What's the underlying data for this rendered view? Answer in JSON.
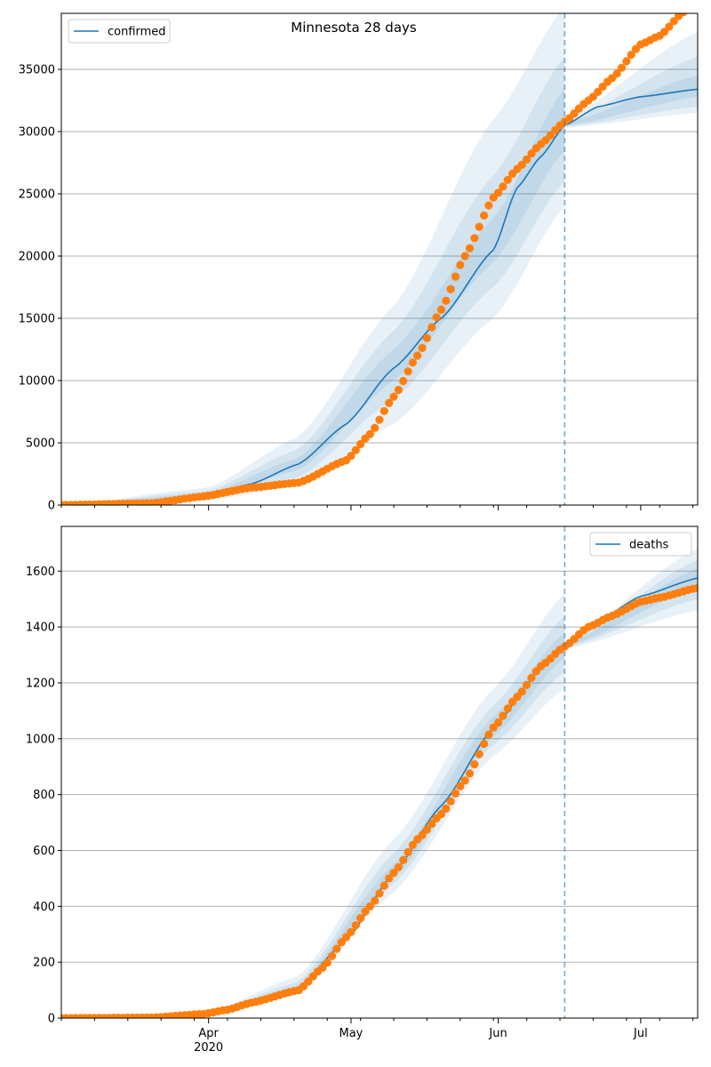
{
  "chart_data": [
    {
      "type": "line",
      "title": "Minnesota 28 days",
      "legend": {
        "label": "confirmed",
        "placement": "top-left"
      },
      "x_start": "2020-03-01",
      "x_end": "2020-07-13",
      "split_date": "2020-06-15",
      "ylim": [
        0,
        39500
      ],
      "yticks": [
        0,
        5000,
        10000,
        15000,
        20000,
        25000,
        30000,
        35000
      ],
      "xtick_labels": [
        {
          "date": "2020-04-01",
          "label": "Apr",
          "year": "2020"
        },
        {
          "date": "2020-05-01",
          "label": "May"
        },
        {
          "date": "2020-06-01",
          "label": "Jun"
        },
        {
          "date": "2020-07-01",
          "label": "Jul"
        }
      ],
      "grid": "horizontal",
      "colors": {
        "model": "#1f77b4",
        "observed": "#ff7f0e",
        "band": "#1f77b4"
      },
      "model_median": [
        [
          "2020-03-01",
          0
        ],
        [
          "2020-03-15",
          100
        ],
        [
          "2020-03-25",
          450
        ],
        [
          "2020-04-01",
          800
        ],
        [
          "2020-04-10",
          1700
        ],
        [
          "2020-04-20",
          3300
        ],
        [
          "2020-04-30",
          6500
        ],
        [
          "2020-05-10",
          11000
        ],
        [
          "2020-05-20",
          15000
        ],
        [
          "2020-05-31",
          20500
        ],
        [
          "2020-06-05",
          25500
        ],
        [
          "2020-06-10",
          28000
        ],
        [
          "2020-06-15",
          30500
        ],
        [
          "2020-06-22",
          32000
        ],
        [
          "2020-07-01",
          32800
        ],
        [
          "2020-07-13",
          33400
        ]
      ],
      "bands": [
        {
          "name": "95%",
          "lower": [
            [
              "2020-03-01",
              0
            ],
            [
              "2020-04-01",
              400
            ],
            [
              "2020-04-20",
              1500
            ],
            [
              "2020-05-10",
              6500
            ],
            [
              "2020-05-31",
              15000
            ],
            [
              "2020-06-15",
              24000
            ],
            [
              "2020-06-15",
              30300
            ],
            [
              "2020-07-13",
              31500
            ]
          ],
          "upper": [
            [
              "2020-03-01",
              0
            ],
            [
              "2020-04-01",
              1400
            ],
            [
              "2020-04-20",
              5500
            ],
            [
              "2020-05-10",
              16000
            ],
            [
              "2020-05-31",
              31000
            ],
            [
              "2020-06-15",
              40000
            ],
            [
              "2020-06-15",
              31000
            ],
            [
              "2020-07-13",
              38000
            ]
          ]
        },
        {
          "name": "80%",
          "lower": [
            [
              "2020-03-01",
              0
            ],
            [
              "2020-04-01",
              550
            ],
            [
              "2020-04-20",
              2200
            ],
            [
              "2020-05-10",
              8500
            ],
            [
              "2020-05-31",
              17500
            ],
            [
              "2020-06-15",
              26000
            ],
            [
              "2020-06-15",
              30400
            ],
            [
              "2020-07-13",
              32000
            ]
          ],
          "upper": [
            [
              "2020-03-01",
              0
            ],
            [
              "2020-04-01",
              1150
            ],
            [
              "2020-04-20",
              4500
            ],
            [
              "2020-05-10",
              14000
            ],
            [
              "2020-05-31",
              26500
            ],
            [
              "2020-06-15",
              36000
            ],
            [
              "2020-06-15",
              30800
            ],
            [
              "2020-07-13",
              36000
            ]
          ]
        },
        {
          "name": "50%",
          "lower": [
            [
              "2020-03-01",
              0
            ],
            [
              "2020-04-01",
              700
            ],
            [
              "2020-04-20",
              2800
            ],
            [
              "2020-05-10",
              10000
            ],
            [
              "2020-05-31",
              19500
            ],
            [
              "2020-06-15",
              28500
            ],
            [
              "2020-06-15",
              30450
            ],
            [
              "2020-07-13",
              32800
            ]
          ],
          "upper": [
            [
              "2020-03-01",
              0
            ],
            [
              "2020-04-01",
              950
            ],
            [
              "2020-04-20",
              3800
            ],
            [
              "2020-05-10",
              12500
            ],
            [
              "2020-05-31",
              23000
            ],
            [
              "2020-06-15",
              33500
            ],
            [
              "2020-06-15",
              30650
            ],
            [
              "2020-07-13",
              34500
            ]
          ]
        }
      ],
      "observed_anchors": [
        [
          "2020-03-01",
          0
        ],
        [
          "2020-03-20",
          150
        ],
        [
          "2020-03-31",
          700
        ],
        [
          "2020-04-10",
          1400
        ],
        [
          "2020-04-20",
          1800
        ],
        [
          "2020-04-30",
          3600
        ],
        [
          "2020-05-05",
          5700
        ],
        [
          "2020-05-10",
          8700
        ],
        [
          "2020-05-15",
          12000
        ],
        [
          "2020-05-20",
          15700
        ],
        [
          "2020-05-25",
          20000
        ],
        [
          "2020-05-31",
          24700
        ],
        [
          "2020-06-05",
          27000
        ],
        [
          "2020-06-10",
          29000
        ],
        [
          "2020-06-15",
          30800
        ],
        [
          "2020-06-20",
          32500
        ],
        [
          "2020-06-25",
          34300
        ],
        [
          "2020-07-01",
          37000
        ],
        [
          "2020-07-05",
          37700
        ],
        [
          "2020-07-10",
          39600
        ]
      ]
    },
    {
      "type": "line",
      "title": "",
      "legend": {
        "label": "deaths",
        "placement": "top-right"
      },
      "x_start": "2020-03-01",
      "x_end": "2020-07-13",
      "split_date": "2020-06-15",
      "ylim": [
        0,
        1760
      ],
      "yticks": [
        0,
        200,
        400,
        600,
        800,
        1000,
        1200,
        1400,
        1600
      ],
      "xtick_labels": [
        {
          "date": "2020-04-01",
          "label": "Apr",
          "year": "2020"
        },
        {
          "date": "2020-05-01",
          "label": "May"
        },
        {
          "date": "2020-06-01",
          "label": "Jun"
        },
        {
          "date": "2020-07-01",
          "label": "Jul"
        }
      ],
      "grid": "horizontal",
      "colors": {
        "model": "#1f77b4",
        "observed": "#ff7f0e",
        "band": "#1f77b4"
      },
      "model_median": [
        [
          "2020-03-01",
          0
        ],
        [
          "2020-03-20",
          2
        ],
        [
          "2020-04-01",
          15
        ],
        [
          "2020-04-10",
          50
        ],
        [
          "2020-04-20",
          110
        ],
        [
          "2020-04-30",
          280
        ],
        [
          "2020-05-10",
          520
        ],
        [
          "2020-05-20",
          760
        ],
        [
          "2020-05-31",
          1040
        ],
        [
          "2020-06-10",
          1250
        ],
        [
          "2020-06-15",
          1330
        ],
        [
          "2020-06-22",
          1420
        ],
        [
          "2020-07-01",
          1510
        ],
        [
          "2020-07-13",
          1575
        ]
      ],
      "bands": [
        {
          "name": "95%",
          "lower": [
            [
              "2020-03-01",
              0
            ],
            [
              "2020-04-01",
              10
            ],
            [
              "2020-04-20",
              85
            ],
            [
              "2020-05-10",
              450
            ],
            [
              "2020-05-31",
              940
            ],
            [
              "2020-06-15",
              1180
            ],
            [
              "2020-06-15",
              1320
            ],
            [
              "2020-07-13",
              1460
            ]
          ],
          "upper": [
            [
              "2020-03-01",
              0
            ],
            [
              "2020-04-01",
              22
            ],
            [
              "2020-04-20",
              150
            ],
            [
              "2020-05-10",
              640
            ],
            [
              "2020-05-31",
              1180
            ],
            [
              "2020-06-15",
              1520
            ],
            [
              "2020-06-15",
              1345
            ],
            [
              "2020-07-13",
              1680
            ]
          ]
        },
        {
          "name": "80%",
          "lower": [
            [
              "2020-03-01",
              0
            ],
            [
              "2020-04-01",
              12
            ],
            [
              "2020-04-20",
              95
            ],
            [
              "2020-05-10",
              480
            ],
            [
              "2020-05-31",
              980
            ],
            [
              "2020-06-15",
              1240
            ],
            [
              "2020-06-15",
              1325
            ],
            [
              "2020-07-13",
              1500
            ]
          ],
          "upper": [
            [
              "2020-03-01",
              0
            ],
            [
              "2020-04-01",
              19
            ],
            [
              "2020-04-20",
              130
            ],
            [
              "2020-05-10",
              590
            ],
            [
              "2020-05-31",
              1120
            ],
            [
              "2020-06-15",
              1440
            ],
            [
              "2020-06-15",
              1340
            ],
            [
              "2020-07-13",
              1640
            ]
          ]
        },
        {
          "name": "50%",
          "lower": [
            [
              "2020-03-01",
              0
            ],
            [
              "2020-04-01",
              13
            ],
            [
              "2020-04-20",
              102
            ],
            [
              "2020-05-10",
              500
            ],
            [
              "2020-05-31",
              1010
            ],
            [
              "2020-06-15",
              1290
            ],
            [
              "2020-06-15",
              1328
            ],
            [
              "2020-07-13",
              1540
            ]
          ],
          "upper": [
            [
              "2020-03-01",
              0
            ],
            [
              "2020-04-01",
              17
            ],
            [
              "2020-04-20",
              118
            ],
            [
              "2020-05-10",
              550
            ],
            [
              "2020-05-31",
              1080
            ],
            [
              "2020-06-15",
              1380
            ],
            [
              "2020-06-15",
              1336
            ],
            [
              "2020-07-13",
              1610
            ]
          ]
        }
      ],
      "observed_anchors": [
        [
          "2020-03-01",
          0
        ],
        [
          "2020-03-20",
          2
        ],
        [
          "2020-03-31",
          15
        ],
        [
          "2020-04-05",
          30
        ],
        [
          "2020-04-10",
          55
        ],
        [
          "2020-04-20",
          100
        ],
        [
          "2020-04-25",
          180
        ],
        [
          "2020-04-30",
          290
        ],
        [
          "2020-05-05",
          400
        ],
        [
          "2020-05-10",
          520
        ],
        [
          "2020-05-15",
          640
        ],
        [
          "2020-05-20",
          730
        ],
        [
          "2020-05-25",
          850
        ],
        [
          "2020-05-31",
          1040
        ],
        [
          "2020-06-05",
          1150
        ],
        [
          "2020-06-10",
          1260
        ],
        [
          "2020-06-15",
          1330
        ],
        [
          "2020-06-20",
          1400
        ],
        [
          "2020-06-25",
          1440
        ],
        [
          "2020-07-01",
          1490
        ],
        [
          "2020-07-05",
          1505
        ],
        [
          "2020-07-13",
          1540
        ]
      ]
    }
  ]
}
